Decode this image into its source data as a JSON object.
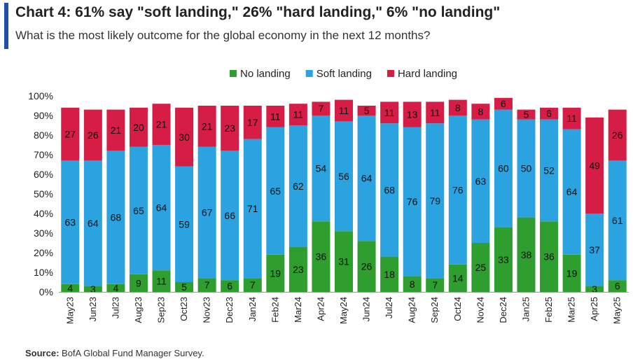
{
  "header": {
    "title": "Chart 4: 61% say \"soft landing,\" 26% \"hard landing,\" 6% \"no landing\"",
    "subtitle": "What is the most likely outcome for the global economy in the next 12 months?"
  },
  "footer": {
    "source_label": "Source:",
    "source_text": "BofA Global Fund Manager Survey."
  },
  "chart_data": {
    "type": "bar",
    "stacked": true,
    "categories": [
      "May23",
      "Jun23",
      "Jul23",
      "Aug23",
      "Sep23",
      "Oct23",
      "Nov23",
      "Dec23",
      "Jan24",
      "Feb24",
      "Mar24",
      "Apr24",
      "May24",
      "Jun24",
      "Jul24",
      "Aug24",
      "Sep24",
      "Oct24",
      "Nov24",
      "Dec24",
      "Jan25",
      "Feb25",
      "Mar25",
      "Apr25",
      "May25"
    ],
    "series": [
      {
        "name": "No landing",
        "color": "#2e9e2e",
        "values": [
          4,
          3,
          4,
          9,
          11,
          5,
          7,
          6,
          7,
          19,
          23,
          36,
          31,
          26,
          18,
          8,
          7,
          14,
          25,
          33,
          38,
          36,
          19,
          3,
          6
        ]
      },
      {
        "name": "Soft landing",
        "color": "#2aa3e0",
        "values": [
          63,
          64,
          68,
          65,
          64,
          59,
          67,
          66,
          71,
          65,
          62,
          54,
          56,
          64,
          68,
          76,
          79,
          76,
          63,
          60,
          50,
          52,
          64,
          37,
          61
        ]
      },
      {
        "name": "Hard landing",
        "color": "#d61d45",
        "values": [
          27,
          26,
          21,
          20,
          21,
          30,
          21,
          23,
          17,
          11,
          11,
          7,
          11,
          5,
          11,
          13,
          11,
          8,
          8,
          6,
          5,
          6,
          11,
          49,
          26
        ]
      }
    ],
    "yticks": [
      "0%",
      "10%",
      "20%",
      "30%",
      "40%",
      "50%",
      "60%",
      "70%",
      "80%",
      "90%",
      "100%"
    ],
    "ylim": [
      0,
      100
    ],
    "legend_position": "top-center",
    "xlabel": "",
    "ylabel": ""
  }
}
